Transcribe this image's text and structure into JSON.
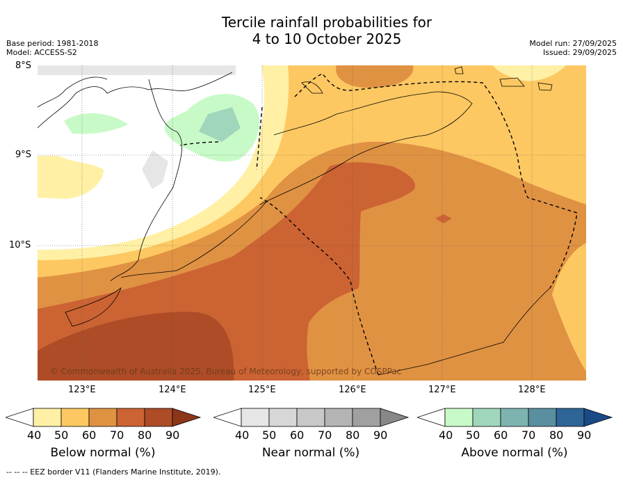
{
  "header": {
    "title_line1": "Tercile rainfall probabilities for",
    "title_line2": "4 to 10 October 2025",
    "base_period": "Base period: 1981-2018",
    "model": "Model: ACCESS-S2",
    "model_run": "Model run: 27/09/2025",
    "issued": "Issued: 29/09/2025"
  },
  "map": {
    "lat_labels": [
      "8°S",
      "9°S",
      "10°S"
    ],
    "lon_labels": [
      "123°E",
      "124°E",
      "125°E",
      "126°E",
      "127°E",
      "128°E"
    ],
    "copyright": "© Commonwealth of Australia 2025, Bureau of Meteorology, supported by COSPPac"
  },
  "colorbars": {
    "below": {
      "label": "Below normal (%)",
      "ticks": [
        "40",
        "50",
        "60",
        "70",
        "80",
        "90"
      ],
      "colors": [
        "#fff0a5",
        "#fdc862",
        "#e09243",
        "#cc6333",
        "#ad4c27",
        "#8c3519"
      ]
    },
    "near": {
      "label": "Near normal (%)",
      "ticks": [
        "40",
        "50",
        "60",
        "70",
        "80",
        "90"
      ],
      "colors": [
        "#e6e6e6",
        "#d7d7d7",
        "#c8c8c8",
        "#b4b4b4",
        "#a0a0a0",
        "#888888"
      ]
    },
    "above": {
      "label": "Above normal (%)",
      "ticks": [
        "40",
        "50",
        "60",
        "70",
        "80",
        "90"
      ],
      "colors": [
        "#c8fac8",
        "#a0d6bc",
        "#7db4b0",
        "#5a8fa0",
        "#2f6496",
        "#1a4a86"
      ]
    }
  },
  "footer": {
    "legend_line": "--  --  -- EEZ border V11 (Flanders Marine Institute, 2019)."
  }
}
